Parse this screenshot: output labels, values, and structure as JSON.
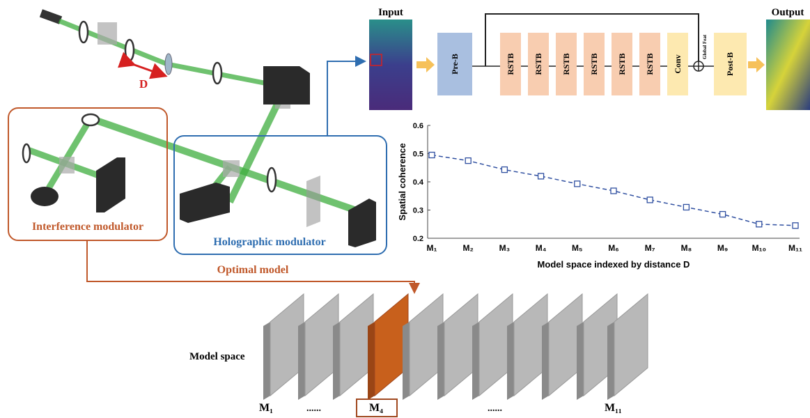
{
  "diagram": {
    "input_label": "Input",
    "output_label": "Output",
    "pre_block": "Pre-B",
    "rstb_blocks": [
      "RSTB",
      "RSTB",
      "RSTB",
      "RSTB",
      "RSTB",
      "RSTB"
    ],
    "conv_block": "Conv",
    "global_feat": "Global Feat",
    "post_block": "Post-B",
    "distance_label": "D",
    "interference_modulator": "Interference modulator",
    "holographic_modulator": "Holographic modulator",
    "optimal_model": "Optimal model",
    "model_space": {
      "title": "Model space",
      "labels": [
        "M₁",
        "......",
        "M₄",
        "......",
        "M₁₁"
      ]
    }
  },
  "chart_data": {
    "type": "line",
    "categories": [
      "M₁",
      "M₂",
      "M₃",
      "M₄",
      "M₅",
      "M₆",
      "M₇",
      "M₈",
      "M₉",
      "M₁₀",
      "M₁₁"
    ],
    "series": [
      {
        "name": "Spatial coherence",
        "color": "#2f4fa0",
        "values": [
          0.495,
          0.475,
          0.443,
          0.42,
          0.393,
          0.368,
          0.336,
          0.31,
          0.285,
          0.25,
          0.245
        ]
      }
    ],
    "ylim": [
      0.2,
      0.6
    ],
    "yticks": [
      0.2,
      0.3,
      0.4,
      0.5,
      0.6
    ],
    "y_label": "Spatial coherence",
    "x_label": "Model space indexed by distance D"
  }
}
